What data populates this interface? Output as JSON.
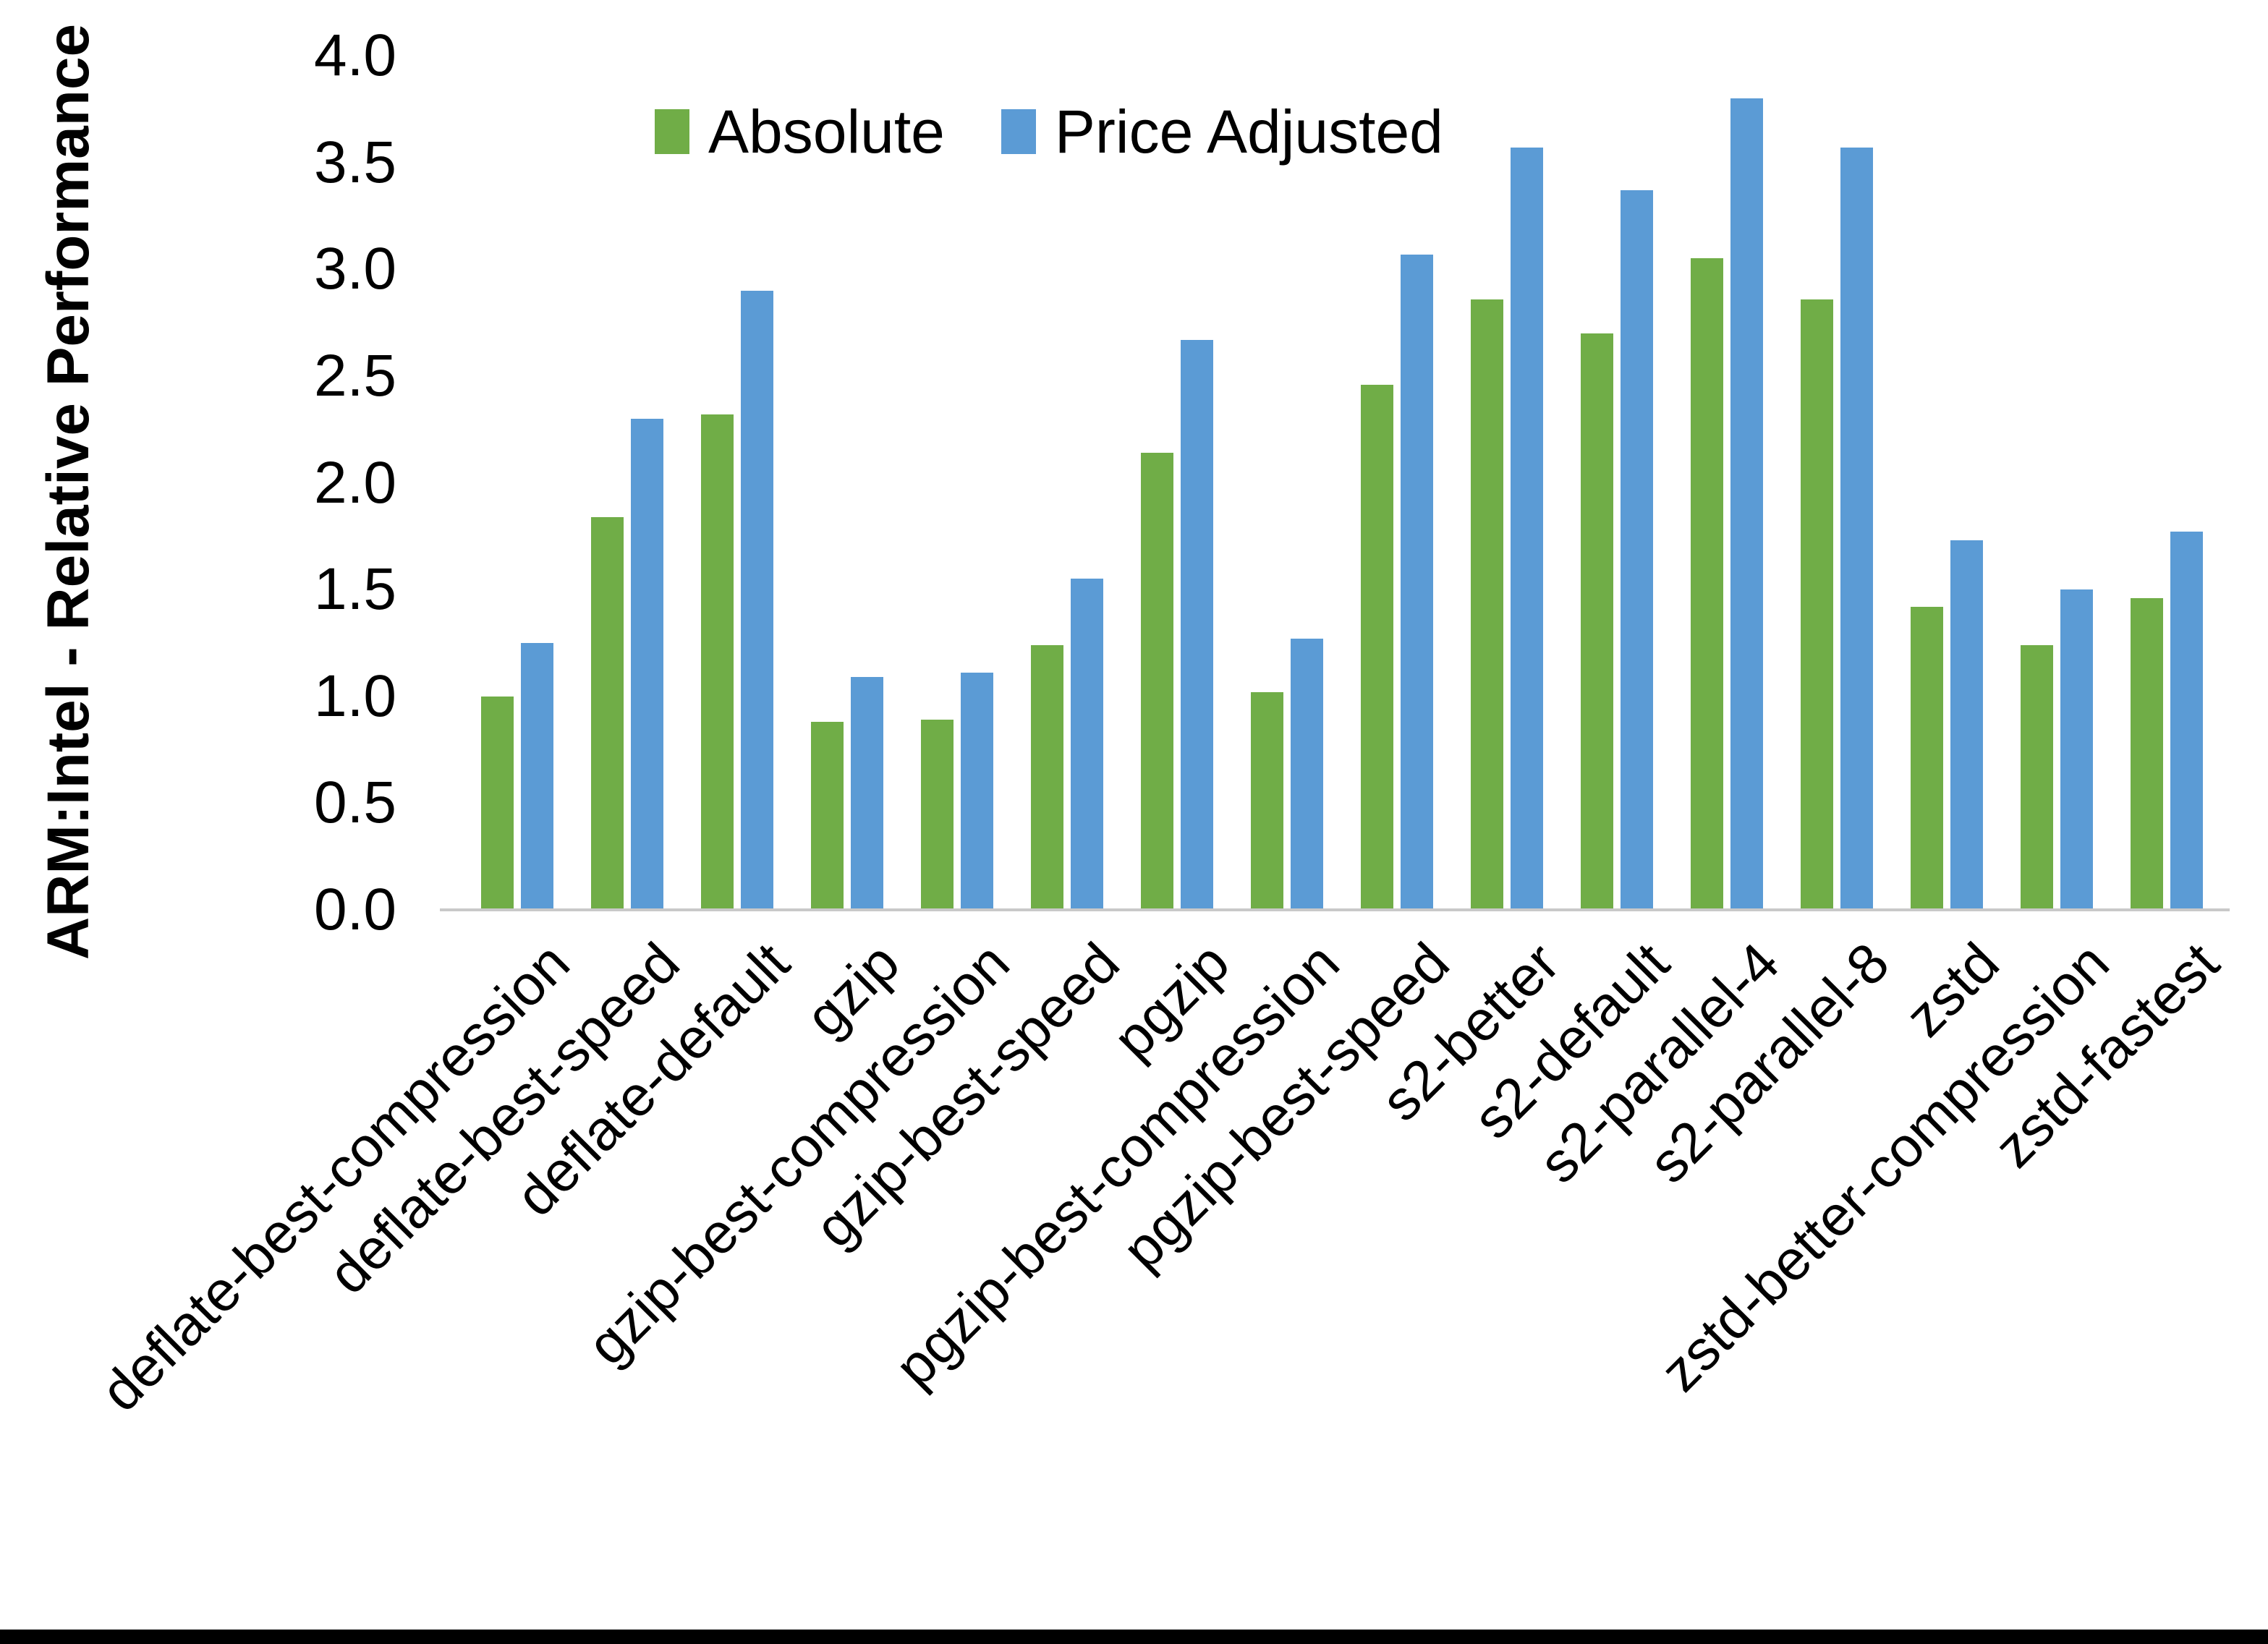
{
  "chart_data": {
    "type": "bar",
    "title": "",
    "ylabel": "ARM:Intel - Relative Performance",
    "xlabel": "",
    "ylim": [
      0.0,
      4.0
    ],
    "ytick_step": 0.5,
    "grid": false,
    "legend_position": "top-center",
    "categories": [
      "deflate-best-compression",
      "deflate-best-speed",
      "deflate-default",
      "gzip",
      "gzip-best-compression",
      "gzip-best-speed",
      "pgzip",
      "pgzip-best-compression",
      "pgzip-best-speed",
      "s2-better",
      "s2-default",
      "s2-parallel-4",
      "s2-parallel-8",
      "zstd",
      "zstd-better-compression",
      "zstd-fastest"
    ],
    "series": [
      {
        "name": "Absolute",
        "color": "#70AD47",
        "values": [
          1.0,
          1.84,
          2.32,
          0.88,
          0.89,
          1.24,
          2.14,
          1.02,
          2.46,
          2.86,
          2.7,
          3.05,
          2.86,
          1.42,
          1.24,
          1.46
        ]
      },
      {
        "name": "Price Adjusted",
        "color": "#5B9BD5",
        "values": [
          1.25,
          2.3,
          2.9,
          1.09,
          1.11,
          1.55,
          2.67,
          1.27,
          3.07,
          3.57,
          3.37,
          3.8,
          3.57,
          1.73,
          1.5,
          1.77
        ]
      }
    ],
    "axis_line_color": "#C9C9C9",
    "text_color": "#000000",
    "background_color": "#FFFFFF",
    "bottom_border_color": "#000000"
  }
}
